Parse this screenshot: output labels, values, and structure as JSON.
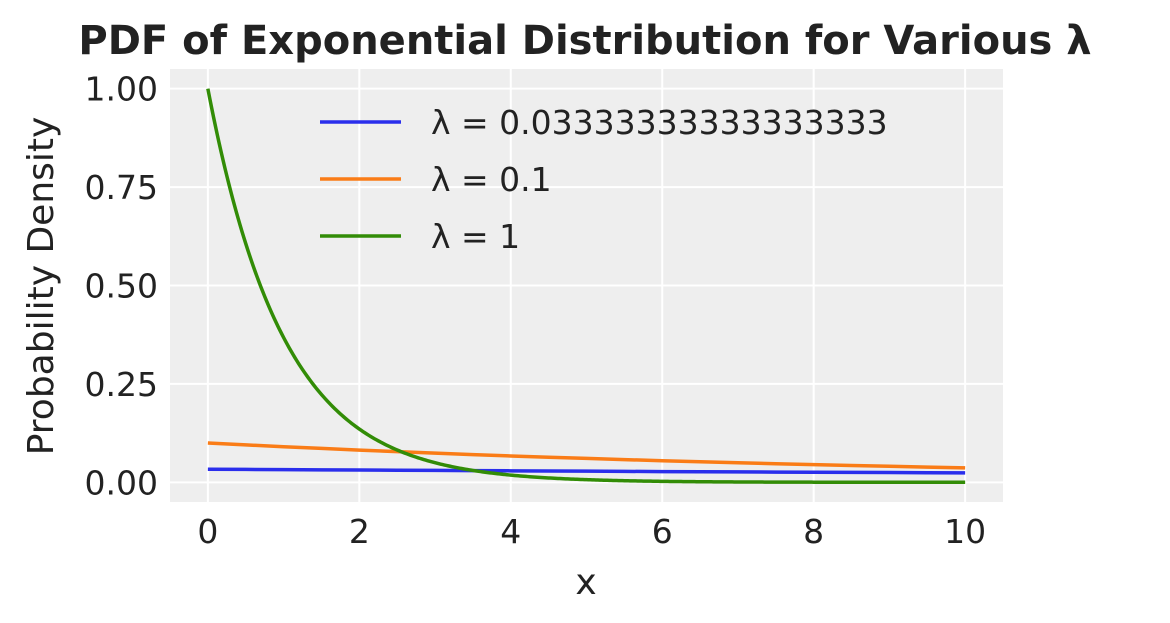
{
  "chart_data": {
    "type": "line",
    "title": "PDF of Exponential Distribution for Various λ",
    "xlabel": "x",
    "ylabel": "Probability Density",
    "xlim": [
      -0.5,
      10.5
    ],
    "ylim": [
      -0.05,
      1.05
    ],
    "x_ticks": [
      0,
      2,
      4,
      6,
      8,
      10
    ],
    "x_tick_labels": [
      "0",
      "2",
      "4",
      "6",
      "8",
      "10"
    ],
    "y_ticks": [
      0,
      0.25,
      0.5,
      0.75,
      1.0
    ],
    "y_tick_labels": [
      "0.00",
      "0.25",
      "0.50",
      "0.75",
      "1.00"
    ],
    "grid": true,
    "legend_position": "upper right",
    "background": "#eeeeee",
    "x": [
      0,
      0.5,
      1,
      1.5,
      2,
      2.5,
      3,
      3.5,
      4,
      4.5,
      5,
      5.5,
      6,
      6.5,
      7,
      7.5,
      8,
      8.5,
      9,
      9.5,
      10
    ],
    "series": [
      {
        "name": "λ = 0.03333333333333333",
        "color": "#2a2eec",
        "values": [
          0.0333,
          0.0328,
          0.0322,
          0.0317,
          0.0312,
          0.0307,
          0.0302,
          0.0297,
          0.0292,
          0.0287,
          0.0283,
          0.0278,
          0.0273,
          0.0269,
          0.0265,
          0.026,
          0.0256,
          0.0252,
          0.0248,
          0.0244,
          0.0239
        ]
      },
      {
        "name": "λ = 0.1",
        "color": "#fa7c17",
        "values": [
          0.1,
          0.0951,
          0.0905,
          0.0861,
          0.0819,
          0.0779,
          0.0741,
          0.0705,
          0.067,
          0.0638,
          0.0607,
          0.0577,
          0.0549,
          0.0522,
          0.0497,
          0.0472,
          0.0449,
          0.0427,
          0.0407,
          0.0387,
          0.0368
        ]
      },
      {
        "name": "λ = 1",
        "color": "#328c06",
        "values": [
          1.0,
          0.6065,
          0.3679,
          0.2231,
          0.1353,
          0.0821,
          0.0498,
          0.0302,
          0.0183,
          0.0111,
          0.0067,
          0.0041,
          0.0025,
          0.0015,
          0.0009,
          0.0006,
          0.0003,
          0.0002,
          0.0001,
          0.0001,
          0.0
        ]
      }
    ]
  }
}
